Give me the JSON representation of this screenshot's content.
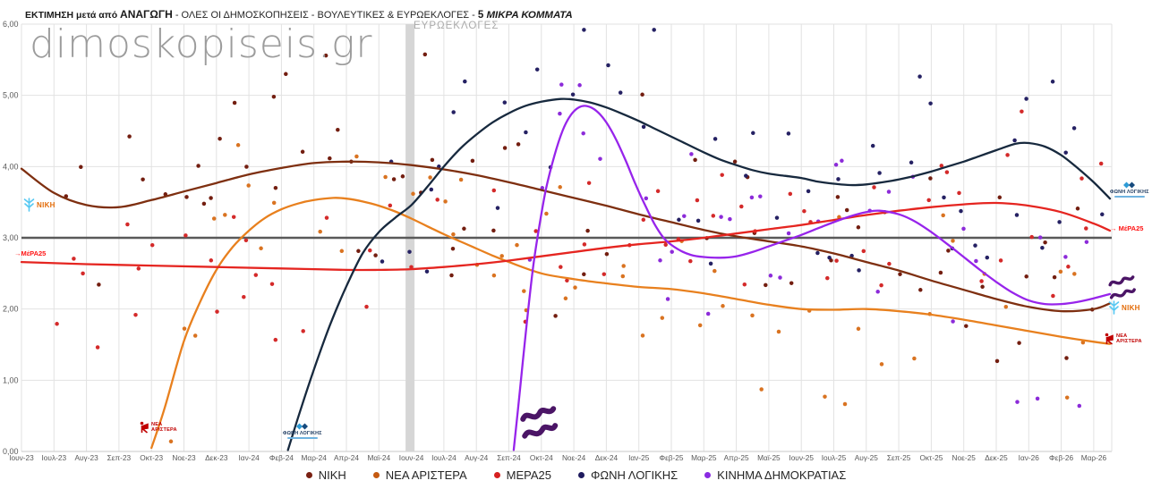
{
  "title": {
    "prefix": "ΕΚΤΙΜΗΣΗ μετά από ",
    "bold1": "ΑΝΑΓΩΓΗ",
    "middle": " - ΟΛΕΣ ΟΙ ΔΗΜΟΣΚΟΠΗΣΕΙΣ - ΒΟΥΛΕΥΤΙΚΕΣ & ΕΥΡΩΕΚΛΟΓΕΣ - ",
    "bold2": "5",
    "italic": " ΜΙΚΡΑ ΚΟΜΜΑΤΑ"
  },
  "watermark": "dimoskopiseis.gr",
  "annotations": {
    "euro_band_label": "ΕΥΡΩΕΚΛΟΓΕΣ"
  },
  "axes": {
    "y_ticks": [
      "0,00",
      "1,00",
      "2,00",
      "3,00",
      "4,00",
      "5,00",
      "6,00"
    ],
    "y_values": [
      0,
      1,
      2,
      3,
      4,
      5,
      6
    ],
    "threshold_value": 3,
    "x_ticks": [
      "Ιουν-23",
      "Ιουλ-23",
      "Αυγ-23",
      "Σεπ-23",
      "Οκτ-23",
      "Νοε-23",
      "Δεκ-23",
      "Ιαν-24",
      "Φεβ-24",
      "Μαρ-24",
      "Απρ-24",
      "Μαϊ-24",
      "Ιουν-24",
      "Ιουλ-24",
      "Αυγ-24",
      "Σεπ-24",
      "Οκτ-24",
      "Νοε-24",
      "Δεκ-24",
      "Ιαν-25",
      "Φεβ-25",
      "Μαρ-25",
      "Απρ-25",
      "Μαϊ-25",
      "Ιουν-25",
      "Ιουλ-25",
      "Αυγ-25",
      "Σεπ-25",
      "Οκτ-25",
      "Νοε-25",
      "Δεκ-25",
      "Ιαν-26",
      "Φεβ-26",
      "Μαρ-26"
    ]
  },
  "legend": [
    {
      "label": "ΝΙΚΗ",
      "color": "#7a2113"
    },
    {
      "label": "ΝΕΑ ΑΡΙΣΤΕΡΑ",
      "color": "#c55a11"
    },
    {
      "label": "ΜΕΡΑ25",
      "color": "#d62020"
    },
    {
      "label": "ΦΩΝΗ ΛΟΓΙΚΗΣ",
      "color": "#1f1b5e"
    },
    {
      "label": "ΚΙΝΗΜΑ ΔΗΜΟΚΡΑΤΙΑΣ",
      "color": "#8a2be2"
    }
  ],
  "edge_labels": {
    "niki_left": "ΝΙΚΗ",
    "niki_right": "ΝΙΚΗ",
    "mera25_left": "→ΜέΡΑ25",
    "mera25_right": "→ ΜέΡΑ25",
    "nea_line1": "ΝΕΑ",
    "nea_line2": "ΑΡΙΣΤΕΡΑ",
    "foni_left": "ΦΩΝΗ ΛΟΓΙΚΗΣ",
    "foni_right": "ΦΩΝΗ ΛΟΓΙΚΗΣ"
  },
  "chart_data": {
    "type": "scatter",
    "subtype": "polls-with-smoothed-trends",
    "x_unit": "months since Ιουν-23",
    "ylim": [
      0,
      6
    ],
    "threshold": 3,
    "euro_elections_month_index": 12,
    "euro_elections_label": "ΕΥΡΩΕΚΛΟΓΕΣ",
    "grid": true,
    "legend_position": "bottom",
    "series": [
      {
        "name": "ΝΙΚΗ",
        "line_color": "#7e2f10",
        "point_color": "#731e10",
        "end_value": 2.1,
        "scatter_estimate": {
          "from": 0.8,
          "to": 33.4,
          "density": 0.62,
          "jitter": 1.1
        },
        "trend": [
          [
            0,
            3.97
          ],
          [
            1,
            3.63
          ],
          [
            2,
            3.46
          ],
          [
            3,
            3.43
          ],
          [
            4,
            3.53
          ],
          [
            5,
            3.65
          ],
          [
            6,
            3.77
          ],
          [
            7,
            3.89
          ],
          [
            8,
            3.98
          ],
          [
            9,
            4.05
          ],
          [
            10,
            4.07
          ],
          [
            11,
            4.06
          ],
          [
            12,
            4.02
          ],
          [
            13,
            3.96
          ],
          [
            14,
            3.88
          ],
          [
            15,
            3.78
          ],
          [
            16,
            3.67
          ],
          [
            17,
            3.56
          ],
          [
            18,
            3.45
          ],
          [
            19,
            3.33
          ],
          [
            20,
            3.22
          ],
          [
            21,
            3.11
          ],
          [
            22,
            3.02
          ],
          [
            23,
            2.95
          ],
          [
            24,
            2.88
          ],
          [
            25,
            2.78
          ],
          [
            26,
            2.66
          ],
          [
            27,
            2.54
          ],
          [
            28,
            2.4
          ],
          [
            29,
            2.27
          ],
          [
            30,
            2.14
          ],
          [
            31,
            2.03
          ],
          [
            32,
            1.97
          ],
          [
            33,
            2.0
          ],
          [
            33.5,
            2.08
          ]
        ]
      },
      {
        "name": "ΝΕΑ ΑΡΙΣΤΕΡΑ",
        "line_color": "#e8801e",
        "point_color": "#d97321",
        "end_value": 1.5,
        "scatter_estimate": {
          "from": 4.6,
          "to": 33.4,
          "density": 0.62,
          "jitter": 0.85
        },
        "trend": [
          [
            4,
            0.05
          ],
          [
            4.4,
            0.6
          ],
          [
            5,
            1.55
          ],
          [
            5.5,
            2.1
          ],
          [
            6,
            2.55
          ],
          [
            6.5,
            2.87
          ],
          [
            7,
            3.1
          ],
          [
            7.5,
            3.28
          ],
          [
            8,
            3.4
          ],
          [
            8.5,
            3.48
          ],
          [
            9,
            3.53
          ],
          [
            9.6,
            3.56
          ],
          [
            10,
            3.55
          ],
          [
            10.5,
            3.51
          ],
          [
            11,
            3.45
          ],
          [
            11.5,
            3.37
          ],
          [
            12,
            3.27
          ],
          [
            12.5,
            3.16
          ],
          [
            13,
            3.05
          ],
          [
            13.5,
            2.95
          ],
          [
            14,
            2.85
          ],
          [
            14.5,
            2.75
          ],
          [
            15,
            2.66
          ],
          [
            16,
            2.5
          ],
          [
            17,
            2.42
          ],
          [
            18,
            2.36
          ],
          [
            19,
            2.31
          ],
          [
            20,
            2.28
          ],
          [
            21,
            2.22
          ],
          [
            22,
            2.14
          ],
          [
            23,
            2.06
          ],
          [
            24,
            2.0
          ],
          [
            25,
            1.99
          ],
          [
            26,
            2.0
          ],
          [
            27,
            1.97
          ],
          [
            28,
            1.92
          ],
          [
            29,
            1.85
          ],
          [
            30,
            1.77
          ],
          [
            31,
            1.69
          ],
          [
            32,
            1.61
          ],
          [
            33,
            1.54
          ],
          [
            33.5,
            1.51
          ]
        ]
      },
      {
        "name": "ΜΕΡΑ25",
        "line_color": "#e52520",
        "point_color": "#d42a2a",
        "end_value": 3.1,
        "scatter_estimate": {
          "from": 0.4,
          "to": 33.4,
          "density": 0.62,
          "jitter": 0.8
        },
        "trend": [
          [
            0,
            2.66
          ],
          [
            2,
            2.63
          ],
          [
            4,
            2.61
          ],
          [
            6,
            2.59
          ],
          [
            8,
            2.57
          ],
          [
            10,
            2.55
          ],
          [
            11,
            2.55
          ],
          [
            12,
            2.56
          ],
          [
            13,
            2.59
          ],
          [
            14,
            2.63
          ],
          [
            15,
            2.68
          ],
          [
            16,
            2.74
          ],
          [
            17,
            2.8
          ],
          [
            18,
            2.86
          ],
          [
            19,
            2.91
          ],
          [
            20,
            2.95
          ],
          [
            21,
            3.0
          ],
          [
            22,
            3.06
          ],
          [
            23,
            3.12
          ],
          [
            24,
            3.18
          ],
          [
            25,
            3.25
          ],
          [
            26,
            3.32
          ],
          [
            27,
            3.38
          ],
          [
            28,
            3.43
          ],
          [
            29,
            3.47
          ],
          [
            30,
            3.49
          ],
          [
            31,
            3.45
          ],
          [
            32,
            3.36
          ],
          [
            33,
            3.2
          ],
          [
            33.5,
            3.1
          ]
        ]
      },
      {
        "name": "ΦΩΝΗ ΛΟΓΙΚΗΣ",
        "line_color": "#17293e",
        "point_color": "#252163",
        "end_value": 3.55,
        "scatter_estimate": {
          "from": 10.6,
          "to": 33.4,
          "density": 0.7,
          "jitter": 0.95
        },
        "trend": [
          [
            8.2,
            0.02
          ],
          [
            8.6,
            0.6
          ],
          [
            9,
            1.15
          ],
          [
            9.5,
            1.78
          ],
          [
            10,
            2.32
          ],
          [
            10.5,
            2.78
          ],
          [
            11,
            3.08
          ],
          [
            11.5,
            3.28
          ],
          [
            12,
            3.46
          ],
          [
            12.5,
            3.72
          ],
          [
            13,
            4.0
          ],
          [
            13.5,
            4.25
          ],
          [
            14,
            4.45
          ],
          [
            14.5,
            4.62
          ],
          [
            15,
            4.75
          ],
          [
            15.5,
            4.85
          ],
          [
            16,
            4.91
          ],
          [
            16.6,
            4.95
          ],
          [
            17,
            4.94
          ],
          [
            17.5,
            4.9
          ],
          [
            18,
            4.83
          ],
          [
            18.5,
            4.74
          ],
          [
            19,
            4.64
          ],
          [
            19.5,
            4.53
          ],
          [
            20,
            4.42
          ],
          [
            20.5,
            4.31
          ],
          [
            21,
            4.2
          ],
          [
            21.5,
            4.1
          ],
          [
            22,
            4.02
          ],
          [
            22.5,
            3.95
          ],
          [
            23,
            3.9
          ],
          [
            23.5,
            3.87
          ],
          [
            24,
            3.84
          ],
          [
            24.5,
            3.79
          ],
          [
            25,
            3.76
          ],
          [
            25.5,
            3.74
          ],
          [
            26,
            3.75
          ],
          [
            26.5,
            3.78
          ],
          [
            27,
            3.82
          ],
          [
            27.5,
            3.87
          ],
          [
            28,
            3.93
          ],
          [
            28.5,
            4.0
          ],
          [
            29,
            4.07
          ],
          [
            29.5,
            4.15
          ],
          [
            30,
            4.23
          ],
          [
            30.6,
            4.32
          ],
          [
            31,
            4.33
          ],
          [
            31.5,
            4.28
          ],
          [
            32,
            4.16
          ],
          [
            32.5,
            3.98
          ],
          [
            33,
            3.78
          ],
          [
            33.5,
            3.55
          ]
        ]
      },
      {
        "name": "ΚΙΝΗΜΑ ΔΗΜΟΚΡΑΤΙΑΣ",
        "line_color": "#9724eb",
        "point_color": "#8c2bd9",
        "end_value": 2.2,
        "scatter_estimate": {
          "from": 15.6,
          "to": 33.4,
          "density": 0.7,
          "jitter": 1.0
        },
        "trend": [
          [
            15.15,
            0.02
          ],
          [
            15.35,
            0.9
          ],
          [
            15.55,
            1.8
          ],
          [
            15.75,
            2.6
          ],
          [
            15.95,
            3.2
          ],
          [
            16.15,
            3.7
          ],
          [
            16.4,
            4.15
          ],
          [
            16.65,
            4.5
          ],
          [
            16.9,
            4.72
          ],
          [
            17.15,
            4.83
          ],
          [
            17.4,
            4.85
          ],
          [
            17.7,
            4.78
          ],
          [
            18,
            4.62
          ],
          [
            18.3,
            4.38
          ],
          [
            18.6,
            4.08
          ],
          [
            18.9,
            3.75
          ],
          [
            19.2,
            3.45
          ],
          [
            19.5,
            3.18
          ],
          [
            19.8,
            2.98
          ],
          [
            20.2,
            2.84
          ],
          [
            20.6,
            2.76
          ],
          [
            21,
            2.73
          ],
          [
            21.5,
            2.72
          ],
          [
            22,
            2.74
          ],
          [
            22.5,
            2.8
          ],
          [
            23,
            2.88
          ],
          [
            23.5,
            2.96
          ],
          [
            24,
            3.04
          ],
          [
            24.5,
            3.13
          ],
          [
            25,
            3.22
          ],
          [
            25.5,
            3.3
          ],
          [
            26,
            3.36
          ],
          [
            26.4,
            3.38
          ],
          [
            27,
            3.33
          ],
          [
            27.5,
            3.23
          ],
          [
            28,
            3.08
          ],
          [
            28.5,
            2.91
          ],
          [
            29,
            2.73
          ],
          [
            29.5,
            2.55
          ],
          [
            30,
            2.38
          ],
          [
            30.5,
            2.23
          ],
          [
            31,
            2.12
          ],
          [
            31.5,
            2.07
          ],
          [
            32,
            2.07
          ],
          [
            32.5,
            2.1
          ],
          [
            33,
            2.15
          ],
          [
            33.5,
            2.21
          ]
        ]
      }
    ]
  }
}
